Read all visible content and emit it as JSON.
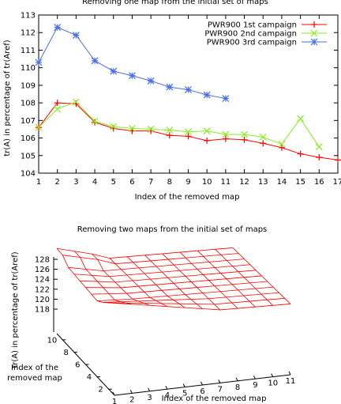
{
  "chart_data": [
    {
      "type": "line",
      "title": "Removing one map from the initial set of maps",
      "xlabel": "Index of the removed map",
      "ylabel": "tr(A) in percentage of tr(Aref)",
      "xlim": [
        1,
        17
      ],
      "ylim": [
        104,
        113
      ],
      "x_ticks": [
        1,
        2,
        3,
        4,
        5,
        6,
        7,
        8,
        9,
        10,
        11,
        12,
        13,
        14,
        15,
        16,
        17
      ],
      "y_ticks": [
        104,
        105,
        106,
        107,
        108,
        109,
        110,
        111,
        112,
        113
      ],
      "legend_position": "top-right",
      "series": [
        {
          "name": "PWR900 1st campaign",
          "color": "#ff0000",
          "marker": "plus",
          "x": [
            1,
            2,
            3,
            4,
            5,
            6,
            7,
            8,
            9,
            10,
            11,
            12,
            13,
            14,
            15,
            16,
            17
          ],
          "values": [
            106.6,
            108.0,
            107.95,
            106.9,
            106.55,
            106.4,
            106.4,
            106.15,
            106.1,
            105.85,
            105.95,
            105.9,
            105.7,
            105.45,
            105.1,
            104.9,
            104.75
          ]
        },
        {
          "name": "PWR900 2nd campaign",
          "color": "#88ee22",
          "marker": "cross",
          "x": [
            1,
            2,
            3,
            4,
            5,
            6,
            7,
            8,
            9,
            10,
            11,
            12,
            13,
            14,
            15,
            16
          ],
          "values": [
            106.6,
            107.65,
            108.05,
            106.95,
            106.65,
            106.55,
            106.5,
            106.45,
            106.35,
            106.4,
            106.2,
            106.2,
            106.05,
            105.65,
            107.1,
            105.5
          ]
        },
        {
          "name": "PWR900 3rd campaign",
          "color": "#4a6fe3",
          "marker": "star",
          "x": [
            1,
            2,
            3,
            4,
            5,
            6,
            7,
            8,
            9,
            10,
            11
          ],
          "values": [
            110.3,
            112.3,
            111.85,
            110.4,
            109.8,
            109.55,
            109.25,
            108.9,
            108.75,
            108.45,
            108.25
          ]
        }
      ]
    },
    {
      "type": "surface",
      "title": "Removing two maps from the initial set of maps",
      "xlabel": "Index of the removed map",
      "ylabel": "Index of the\nremoved map",
      "zlabel": "tr(A) in percentage of tr(Aref)",
      "x_ticks": [
        1,
        2,
        3,
        4,
        5,
        6,
        7,
        8,
        9,
        10,
        11
      ],
      "y_ticks": [
        2,
        4,
        6,
        8,
        10
      ],
      "z_ticks": [
        118,
        120,
        122,
        124,
        126,
        128
      ],
      "color": "#ff0000"
    }
  ]
}
